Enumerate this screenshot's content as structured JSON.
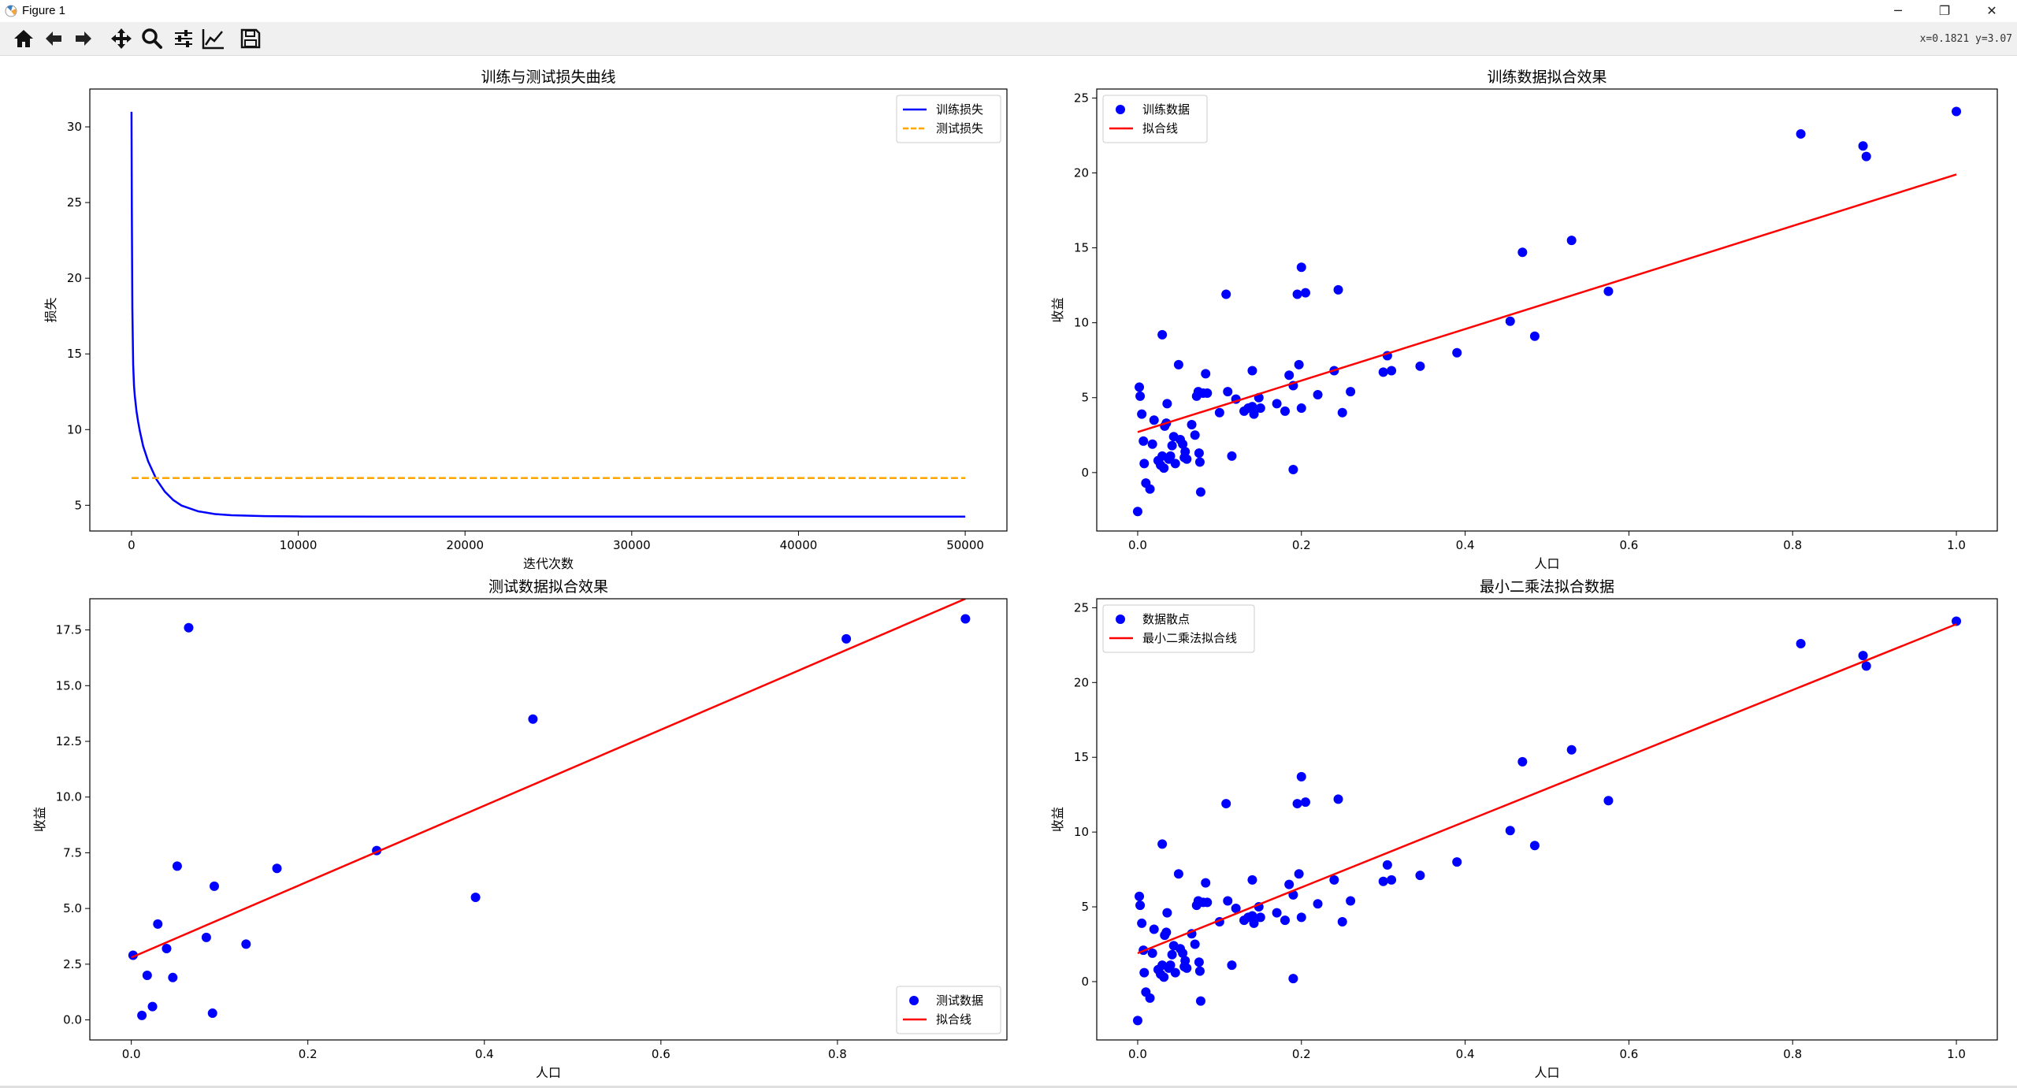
{
  "window": {
    "title": "Figure 1",
    "minimize": "─",
    "restore": "❐",
    "close": "✕"
  },
  "toolbar": {
    "buttons": [
      {
        "name": "home-button",
        "icon": "home-icon"
      },
      {
        "name": "back-button",
        "icon": "arrow-left-icon"
      },
      {
        "name": "forward-button",
        "icon": "arrow-right-icon"
      },
      {
        "name": "pan-button",
        "icon": "move-icon"
      },
      {
        "name": "zoom-button",
        "icon": "magnifier-icon"
      },
      {
        "name": "subplots-button",
        "icon": "sliders-icon"
      },
      {
        "name": "edit-axes-button",
        "icon": "line-chart-icon"
      },
      {
        "name": "save-button",
        "icon": "floppy-disk-icon"
      }
    ],
    "coords": "x=0.1821  y=3.07"
  },
  "chart_data": [
    {
      "type": "line",
      "title": "训练与测试损失曲线",
      "xlabel": "迭代次数",
      "ylabel": "损失",
      "xlim": [
        -2500,
        52500
      ],
      "ylim": [
        3.3,
        32.5
      ],
      "xticks": [
        0,
        10000,
        20000,
        30000,
        40000,
        50000
      ],
      "yticks": [
        5,
        10,
        15,
        20,
        25,
        30
      ],
      "legend": "top-right",
      "series": [
        {
          "name": "训练损失",
          "color": "#0000ff",
          "style": "solid",
          "x": [
            0,
            20,
            50,
            100,
            150,
            200,
            300,
            400,
            500,
            700,
            1000,
            1500,
            2000,
            2500,
            3000,
            4000,
            5000,
            6000,
            8000,
            10000,
            15000,
            20000,
            30000,
            40000,
            50000
          ],
          "y": [
            31.0,
            24.5,
            18.0,
            14.3,
            12.9,
            12.2,
            11.2,
            10.5,
            9.9,
            8.9,
            7.9,
            6.7,
            5.9,
            5.35,
            4.98,
            4.6,
            4.42,
            4.34,
            4.28,
            4.26,
            4.25,
            4.25,
            4.25,
            4.25,
            4.25
          ]
        },
        {
          "name": "测试损失",
          "color": "#ffa500",
          "style": "dashed",
          "x": [
            0,
            50000
          ],
          "y": [
            6.8,
            6.8
          ]
        }
      ]
    },
    {
      "type": "scatter",
      "title": "训练数据拟合效果",
      "xlabel": "人口",
      "ylabel": "收益",
      "xlim": [
        -0.05,
        1.05
      ],
      "ylim": [
        -3.9,
        25.6
      ],
      "xticks": [
        0.0,
        0.2,
        0.4,
        0.6,
        0.8,
        1.0
      ],
      "yticks": [
        0,
        5,
        10,
        15,
        20,
        25
      ],
      "legend": "top-left",
      "series": [
        {
          "name": "训练数据",
          "color": "#0000ff",
          "kind": "points",
          "points": [
            [
              0,
              -2.6
            ],
            [
              0.002,
              5.7
            ],
            [
              0.003,
              5.1
            ],
            [
              0.005,
              3.9
            ],
            [
              0.007,
              2.1
            ],
            [
              0.008,
              0.6
            ],
            [
              0.01,
              -0.7
            ],
            [
              0.015,
              -1.1
            ],
            [
              0.018,
              1.9
            ],
            [
              0.02,
              3.5
            ],
            [
              0.025,
              0.8
            ],
            [
              0.028,
              0.5
            ],
            [
              0.03,
              9.2
            ],
            [
              0.03,
              1.1
            ],
            [
              0.032,
              0.3
            ],
            [
              0.033,
              3.1
            ],
            [
              0.035,
              3.3
            ],
            [
              0.036,
              4.6
            ],
            [
              0.038,
              0.9
            ],
            [
              0.04,
              1.1
            ],
            [
              0.042,
              1.8
            ],
            [
              0.044,
              2.4
            ],
            [
              0.046,
              0.6
            ],
            [
              0.05,
              7.2
            ],
            [
              0.052,
              2.2
            ],
            [
              0.055,
              1.9
            ],
            [
              0.057,
              1.0
            ],
            [
              0.058,
              1.4
            ],
            [
              0.06,
              0.9
            ],
            [
              0.066,
              3.2
            ],
            [
              0.07,
              2.5
            ],
            [
              0.072,
              5.1
            ],
            [
              0.074,
              5.4
            ],
            [
              0.075,
              1.3
            ],
            [
              0.076,
              0.7
            ],
            [
              0.077,
              -1.3
            ],
            [
              0.08,
              5.3
            ],
            [
              0.083,
              6.6
            ],
            [
              0.085,
              5.3
            ],
            [
              0.1,
              4.0
            ],
            [
              0.108,
              11.9
            ],
            [
              0.11,
              5.4
            ],
            [
              0.115,
              1.1
            ],
            [
              0.12,
              4.9
            ],
            [
              0.13,
              4.1
            ],
            [
              0.135,
              4.3
            ],
            [
              0.14,
              4.4
            ],
            [
              0.14,
              6.8
            ],
            [
              0.142,
              3.9
            ],
            [
              0.148,
              5.0
            ],
            [
              0.15,
              4.3
            ],
            [
              0.17,
              4.6
            ],
            [
              0.18,
              4.1
            ],
            [
              0.185,
              6.5
            ],
            [
              0.19,
              0.2
            ],
            [
              0.19,
              5.8
            ],
            [
              0.195,
              11.9
            ],
            [
              0.197,
              7.2
            ],
            [
              0.2,
              13.7
            ],
            [
              0.2,
              4.3
            ],
            [
              0.205,
              12.0
            ],
            [
              0.22,
              5.2
            ],
            [
              0.24,
              6.8
            ],
            [
              0.245,
              12.2
            ],
            [
              0.25,
              4.0
            ],
            [
              0.26,
              5.4
            ],
            [
              0.3,
              6.7
            ],
            [
              0.305,
              7.8
            ],
            [
              0.31,
              6.8
            ],
            [
              0.345,
              7.1
            ],
            [
              0.39,
              8.0
            ],
            [
              0.455,
              10.1
            ],
            [
              0.47,
              14.7
            ],
            [
              0.485,
              9.1
            ],
            [
              0.53,
              15.5
            ],
            [
              0.575,
              12.1
            ],
            [
              0.81,
              22.6
            ],
            [
              0.886,
              21.8
            ],
            [
              0.89,
              21.1
            ],
            [
              1.0,
              24.1
            ]
          ]
        },
        {
          "name": "拟合线",
          "color": "#ff0000",
          "kind": "line",
          "x": [
            0,
            1
          ],
          "y": [
            2.7,
            19.9
          ]
        }
      ]
    },
    {
      "type": "scatter",
      "title": "测试数据拟合效果",
      "xlabel": "人口",
      "ylabel": "收益",
      "xlim": [
        -0.047,
        0.992
      ],
      "ylim": [
        -0.9,
        18.9
      ],
      "xticks": [
        0.0,
        0.2,
        0.4,
        0.6,
        0.8
      ],
      "yticks": [
        0.0,
        2.5,
        5.0,
        7.5,
        10.0,
        12.5,
        15.0,
        17.5
      ],
      "tick_labels_y": [
        "0.0",
        "2.5",
        "5.0",
        "7.5",
        "10.0",
        "12.5",
        "15.0",
        "17.5"
      ],
      "legend": "bottom-right",
      "series": [
        {
          "name": "测试数据",
          "color": "#0000ff",
          "kind": "points",
          "points": [
            [
              0.002,
              2.9
            ],
            [
              0.012,
              0.2
            ],
            [
              0.018,
              2.0
            ],
            [
              0.024,
              0.6
            ],
            [
              0.03,
              4.3
            ],
            [
              0.04,
              3.2
            ],
            [
              0.047,
              1.9
            ],
            [
              0.052,
              6.9
            ],
            [
              0.065,
              17.6
            ],
            [
              0.085,
              3.7
            ],
            [
              0.092,
              0.3
            ],
            [
              0.094,
              6.0
            ],
            [
              0.13,
              3.4
            ],
            [
              0.165,
              6.8
            ],
            [
              0.278,
              7.6
            ],
            [
              0.39,
              5.5
            ],
            [
              0.455,
              13.5
            ],
            [
              0.81,
              17.1
            ],
            [
              0.945,
              18.0
            ]
          ]
        },
        {
          "name": "拟合线",
          "color": "#ff0000",
          "kind": "line",
          "x": [
            0,
            0.945
          ],
          "y": [
            2.8,
            18.9
          ]
        }
      ]
    },
    {
      "type": "scatter",
      "title": "最小二乘法拟合数据",
      "xlabel": "人口",
      "ylabel": "收益",
      "xlim": [
        -0.05,
        1.05
      ],
      "ylim": [
        -3.9,
        25.6
      ],
      "xticks": [
        0.0,
        0.2,
        0.4,
        0.6,
        0.8,
        1.0
      ],
      "yticks": [
        0,
        5,
        10,
        15,
        20,
        25
      ],
      "legend": "top-left",
      "series": [
        {
          "name": "数据散点",
          "color": "#0000ff",
          "kind": "points",
          "points": [
            [
              0,
              -2.6
            ],
            [
              0.002,
              5.7
            ],
            [
              0.003,
              5.1
            ],
            [
              0.005,
              3.9
            ],
            [
              0.007,
              2.1
            ],
            [
              0.008,
              0.6
            ],
            [
              0.01,
              -0.7
            ],
            [
              0.015,
              -1.1
            ],
            [
              0.018,
              1.9
            ],
            [
              0.02,
              3.5
            ],
            [
              0.025,
              0.8
            ],
            [
              0.028,
              0.5
            ],
            [
              0.03,
              9.2
            ],
            [
              0.03,
              1.1
            ],
            [
              0.032,
              0.3
            ],
            [
              0.033,
              3.1
            ],
            [
              0.035,
              3.3
            ],
            [
              0.036,
              4.6
            ],
            [
              0.038,
              0.9
            ],
            [
              0.04,
              1.1
            ],
            [
              0.042,
              1.8
            ],
            [
              0.044,
              2.4
            ],
            [
              0.046,
              0.6
            ],
            [
              0.05,
              7.2
            ],
            [
              0.052,
              2.2
            ],
            [
              0.055,
              1.9
            ],
            [
              0.057,
              1.0
            ],
            [
              0.058,
              1.4
            ],
            [
              0.06,
              0.9
            ],
            [
              0.066,
              3.2
            ],
            [
              0.07,
              2.5
            ],
            [
              0.072,
              5.1
            ],
            [
              0.074,
              5.4
            ],
            [
              0.075,
              1.3
            ],
            [
              0.076,
              0.7
            ],
            [
              0.077,
              -1.3
            ],
            [
              0.08,
              5.3
            ],
            [
              0.083,
              6.6
            ],
            [
              0.085,
              5.3
            ],
            [
              0.1,
              4.0
            ],
            [
              0.108,
              11.9
            ],
            [
              0.11,
              5.4
            ],
            [
              0.115,
              1.1
            ],
            [
              0.12,
              4.9
            ],
            [
              0.13,
              4.1
            ],
            [
              0.135,
              4.3
            ],
            [
              0.14,
              4.4
            ],
            [
              0.14,
              6.8
            ],
            [
              0.142,
              3.9
            ],
            [
              0.148,
              5.0
            ],
            [
              0.15,
              4.3
            ],
            [
              0.17,
              4.6
            ],
            [
              0.18,
              4.1
            ],
            [
              0.185,
              6.5
            ],
            [
              0.19,
              0.2
            ],
            [
              0.19,
              5.8
            ],
            [
              0.195,
              11.9
            ],
            [
              0.197,
              7.2
            ],
            [
              0.2,
              13.7
            ],
            [
              0.2,
              4.3
            ],
            [
              0.205,
              12.0
            ],
            [
              0.22,
              5.2
            ],
            [
              0.24,
              6.8
            ],
            [
              0.245,
              12.2
            ],
            [
              0.25,
              4.0
            ],
            [
              0.26,
              5.4
            ],
            [
              0.3,
              6.7
            ],
            [
              0.305,
              7.8
            ],
            [
              0.31,
              6.8
            ],
            [
              0.345,
              7.1
            ],
            [
              0.39,
              8.0
            ],
            [
              0.455,
              10.1
            ],
            [
              0.47,
              14.7
            ],
            [
              0.485,
              9.1
            ],
            [
              0.53,
              15.5
            ],
            [
              0.575,
              12.1
            ],
            [
              0.81,
              22.6
            ],
            [
              0.886,
              21.8
            ],
            [
              0.89,
              21.1
            ],
            [
              1.0,
              24.1
            ]
          ]
        },
        {
          "name": "最小二乘法拟合线",
          "color": "#ff0000",
          "kind": "line",
          "x": [
            0,
            1
          ],
          "y": [
            1.9,
            23.9
          ]
        }
      ]
    }
  ]
}
